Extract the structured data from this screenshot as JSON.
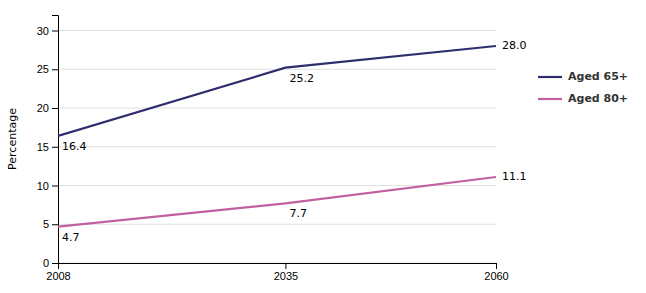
{
  "chart_data": {
    "type": "line",
    "x": [
      2008,
      2035,
      2060
    ],
    "series": [
      {
        "name": "Aged 65+",
        "color": "#2E2E6E",
        "values": [
          16.4,
          25.2,
          28.0
        ],
        "value_labels": [
          "16.4",
          "25.2",
          "28.0"
        ]
      },
      {
        "name": "Aged 80+",
        "color": "#C060A0",
        "values": [
          4.7,
          7.7,
          11.1
        ],
        "value_labels": [
          "4.7",
          "7.7",
          "11.1"
        ]
      }
    ],
    "ylabel": "Percentage",
    "xlim": [
      2008,
      2060
    ],
    "xticks": [
      2008,
      2035,
      2060
    ],
    "ylim": [
      0,
      32
    ],
    "yticks": [
      0,
      5,
      10,
      15,
      20,
      25,
      30
    ],
    "grid": true,
    "legend": "right",
    "data_labels": true
  }
}
